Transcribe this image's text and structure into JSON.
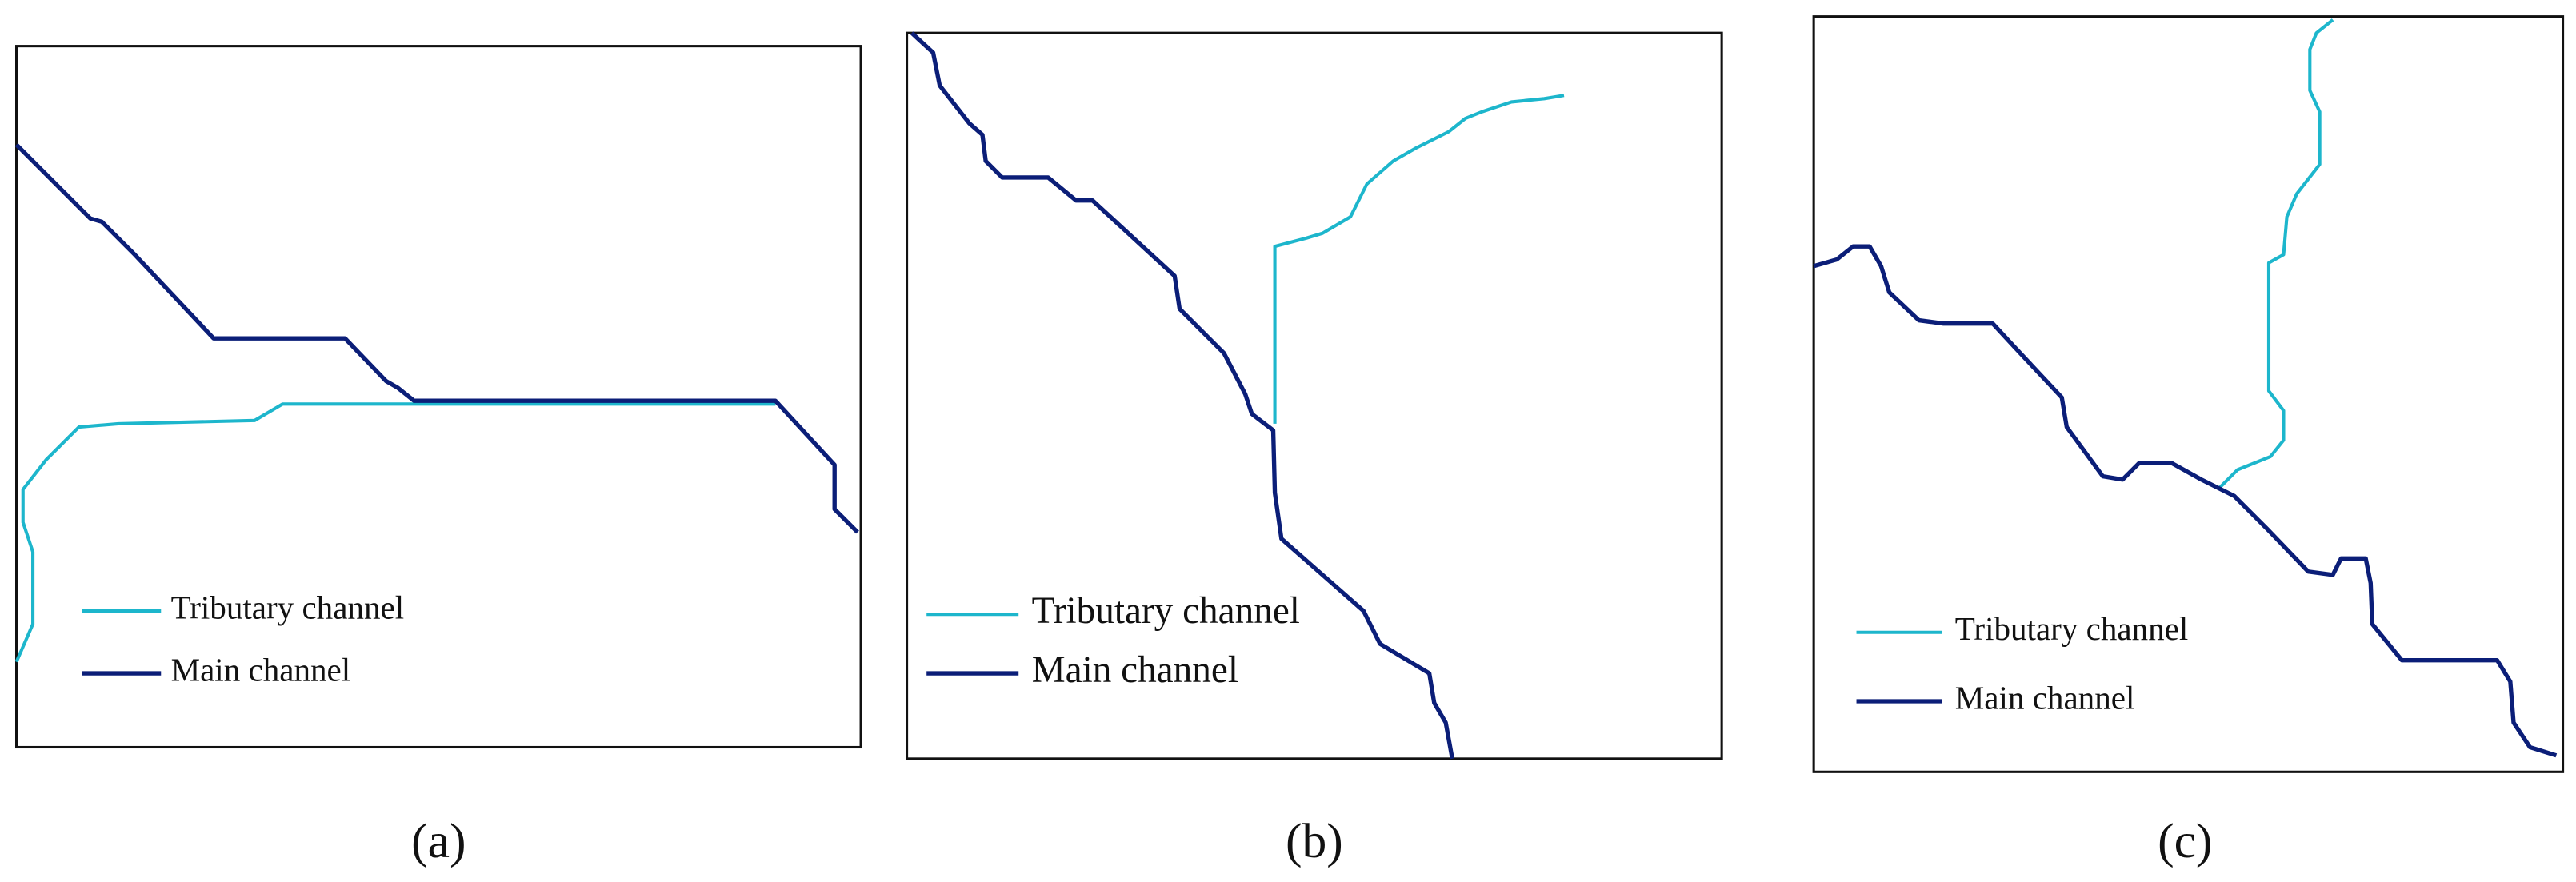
{
  "panels": [
    {
      "caption": "(a)",
      "legend": [
        "Tributary channel",
        "Main channel"
      ]
    },
    {
      "caption": "(b)",
      "legend": [
        "Tributary channel",
        "Main channel"
      ]
    },
    {
      "caption": "(c)",
      "legend": [
        "Tributary channel",
        "Main channel"
      ]
    }
  ]
}
